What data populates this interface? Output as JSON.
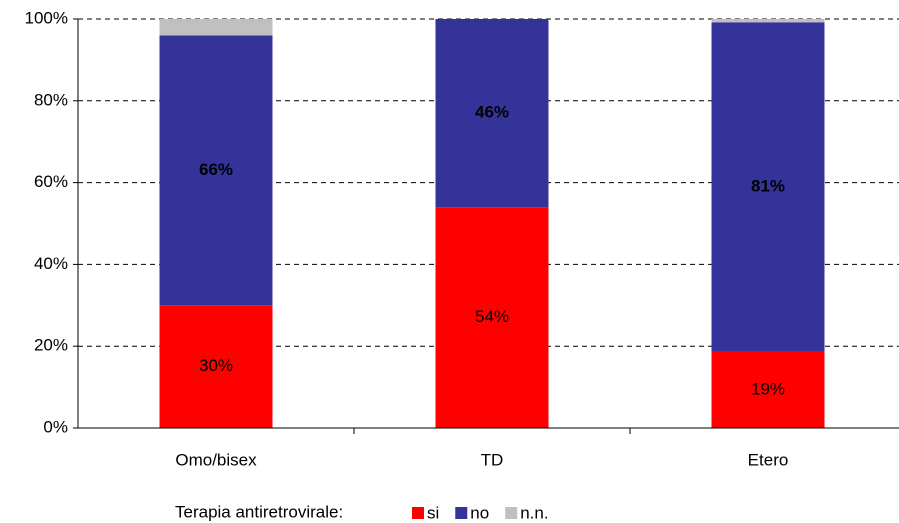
{
  "chart_data": {
    "type": "stacked_bar",
    "categories": [
      "Omo/bisex",
      "TD",
      "Etero"
    ],
    "series": [
      {
        "name": "si",
        "color": "#ff0000",
        "values": [
          30,
          54,
          18.6
        ],
        "value_labels": [
          "30%",
          "54%",
          "19%"
        ]
      },
      {
        "name": "no",
        "color": "#333399",
        "values": [
          66,
          46,
          80.6
        ],
        "value_labels": [
          "66%",
          "46%",
          "81%"
        ]
      },
      {
        "name": "n.n.",
        "color": "#c0c0c0",
        "values": [
          4,
          0,
          0.8
        ]
      }
    ],
    "ylim": [
      0,
      100
    ],
    "yticks": [
      {
        "value": 0,
        "label": "0%"
      },
      {
        "value": 20,
        "label": "20%"
      },
      {
        "value": 40,
        "label": "40%"
      },
      {
        "value": 60,
        "label": "60%"
      },
      {
        "value": 80,
        "label": "80%"
      },
      {
        "value": 100,
        "label": "100%"
      }
    ],
    "grid": true,
    "legend_title": "Terapia antiretrovirale:",
    "legend_position": "bottom"
  }
}
